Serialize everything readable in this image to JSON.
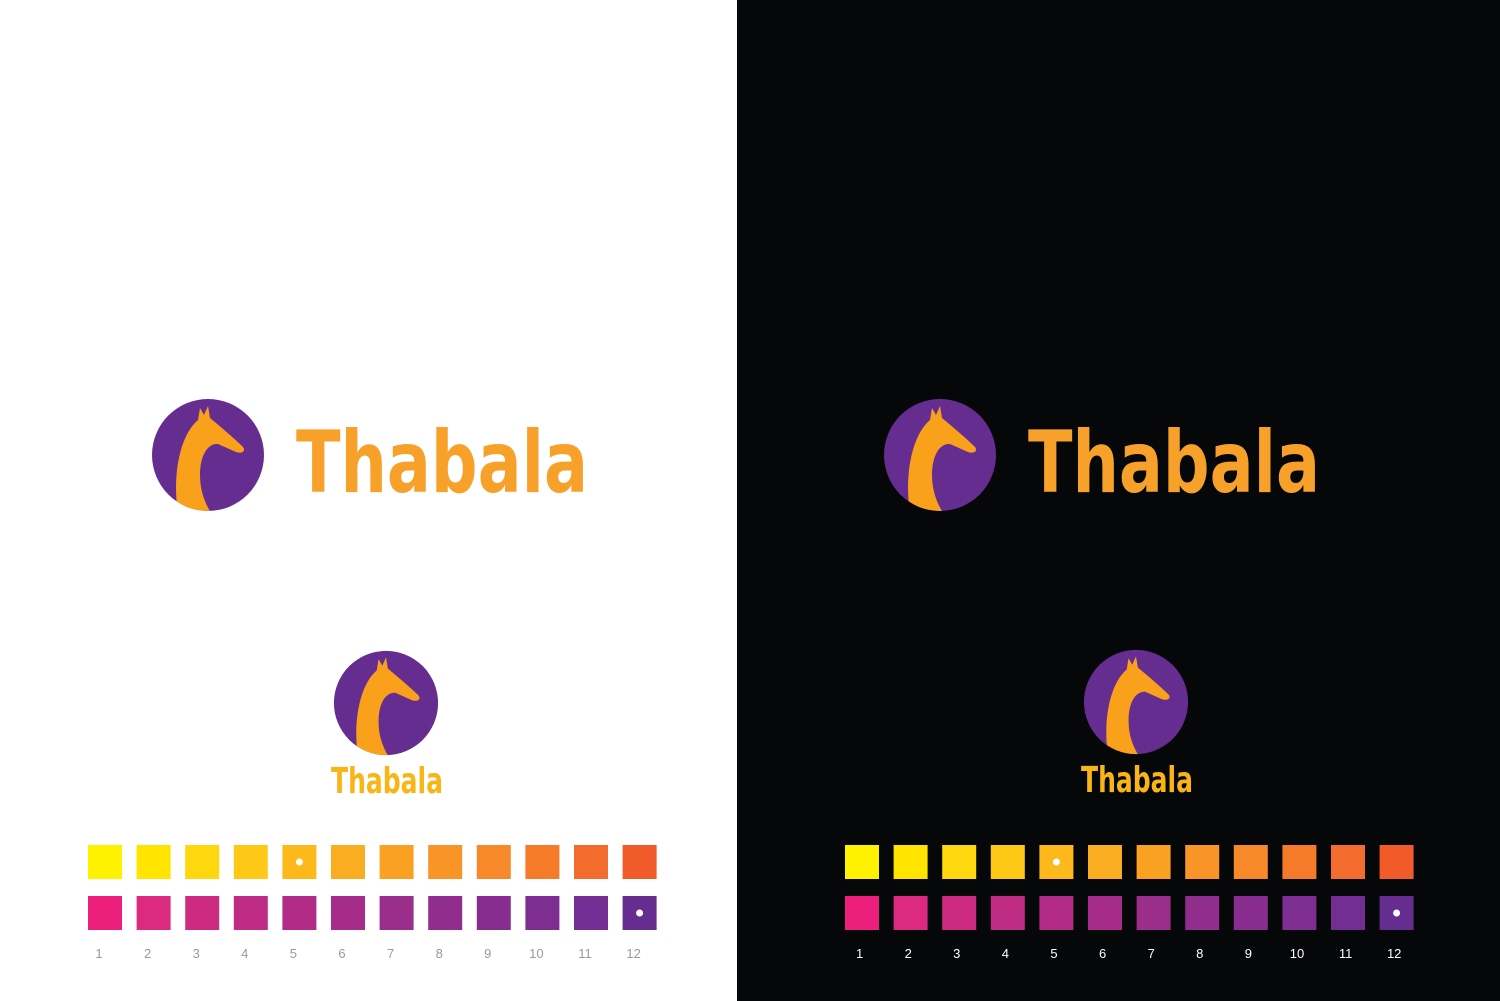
{
  "brand": "Thabala",
  "stacked_brand": "Thabala",
  "palette": {
    "warm": [
      {
        "color": "#fff200"
      },
      {
        "color": "#ffe400"
      },
      {
        "color": "#ffd70f"
      },
      {
        "color": "#fec916"
      },
      {
        "color": "#fdb91c",
        "marked": true
      },
      {
        "color": "#fbad22"
      },
      {
        "color": "#faa124"
      },
      {
        "color": "#f99527"
      },
      {
        "color": "#f7892b"
      },
      {
        "color": "#f57b2b"
      },
      {
        "color": "#f36b2d"
      },
      {
        "color": "#f15a29"
      }
    ],
    "cool": [
      {
        "color": "#ec1f7d"
      },
      {
        "color": "#dc2a80"
      },
      {
        "color": "#cd2b82"
      },
      {
        "color": "#bf2c84"
      },
      {
        "color": "#b22c87"
      },
      {
        "color": "#a52c89"
      },
      {
        "color": "#9b2d8b"
      },
      {
        "color": "#912d8d"
      },
      {
        "color": "#882d8f"
      },
      {
        "color": "#7e2e91"
      },
      {
        "color": "#722e93"
      },
      {
        "color": "#662d91",
        "marked": true
      }
    ]
  },
  "swatch_labels": [
    1,
    2,
    3,
    4,
    5,
    6,
    7,
    8,
    9,
    10,
    11,
    12
  ]
}
